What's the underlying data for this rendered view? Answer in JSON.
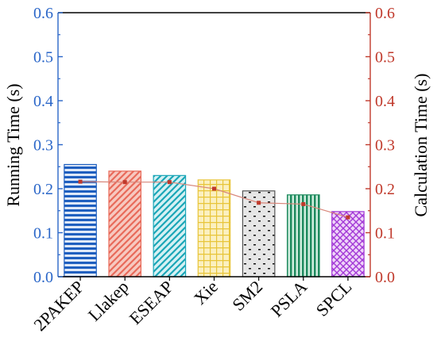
{
  "chart_data": {
    "type": "bar",
    "categories": [
      "2PAKEP",
      "Llakep",
      "ESEAP",
      "Xie",
      "SM2",
      "PSLA",
      "SPCL"
    ],
    "series": [
      {
        "name": "Running Time",
        "axis": "left",
        "type": "bar",
        "values": [
          0.255,
          0.24,
          0.23,
          0.22,
          0.195,
          0.186,
          0.148
        ],
        "colors": [
          "#1f5fbf",
          "#e86a5a",
          "#1aa6b7",
          "#e8c53a",
          "#555555",
          "#1e8a5e",
          "#a238d6"
        ],
        "fills": [
          "#dfe9f8",
          "#f7c9c0",
          "#d6f1f4",
          "#fbf0c0",
          "#e6e6e6",
          "#d2efe0",
          "#efd4f9"
        ],
        "patterns": [
          "horizontal-lines",
          "diagonal-lines",
          "diagonal-lines",
          "grid",
          "dots",
          "vertical-lines",
          "crosshatch"
        ]
      },
      {
        "name": "Calculation Time",
        "axis": "right",
        "type": "line",
        "values": [
          0.216,
          0.215,
          0.215,
          0.2,
          0.168,
          0.165,
          0.135
        ],
        "line_color": "#d8867a",
        "marker_color": "#c0392b"
      }
    ],
    "xlabel": "",
    "ylabel_left": "Running Time (s)",
    "ylabel_right": "Calculation Time (s)",
    "ylim": [
      0,
      0.6
    ],
    "y2lim": [
      0,
      0.6
    ],
    "yticks": [
      "0.0",
      "0.1",
      "0.2",
      "0.3",
      "0.4",
      "0.5",
      "0.6"
    ],
    "y2ticks": [
      "0.0",
      "0.1",
      "0.2",
      "0.3",
      "0.4",
      "0.5",
      "0.6"
    ],
    "grid": false,
    "left_axis_color": "#2a66c8",
    "right_axis_color": "#c0392b"
  }
}
